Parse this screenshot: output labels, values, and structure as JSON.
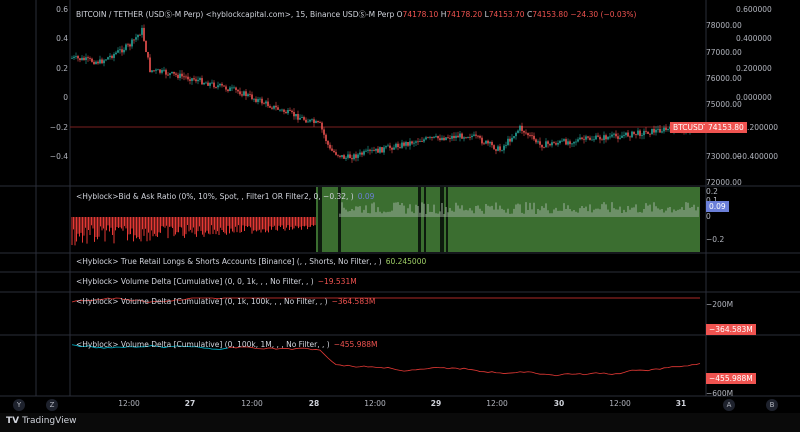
{
  "header": {
    "symbol_title": "BITCOIN / TETHER (USDⓈ-M Perp) <hyblockcapital.com>, 15, Binance USDⓈ-M Perp",
    "o_label": "O",
    "o_value": "74178.10",
    "h_label": "H",
    "h_value": "74178.20",
    "l_label": "L",
    "l_value": "74153.70",
    "c_label": "C",
    "c_value": "74153.80",
    "change": "−24.30 (−0.03%)"
  },
  "price_tag": {
    "symbol": "BTCUSDT",
    "value": "74153.80"
  },
  "left_axis": [
    "0.6",
    "0.4",
    "0.2",
    "0",
    "−0.2",
    "−0.4"
  ],
  "price_axis": [
    "78000.00",
    "77000.00",
    "76000.00",
    "75000.00",
    "73000.00",
    "72000.00"
  ],
  "right_axis": [
    "0.600000",
    "0.400000",
    "0.200000",
    "0.000000",
    "−0.200000",
    "−0.400000"
  ],
  "indicators": {
    "bid_ask": {
      "title": "<Hyblock>Bid & Ask Ratio (0%, 10%, Spot, , Filter1 OR Filter2, 0, −0.32, )",
      "value": "0.09",
      "axis": [
        "0.2",
        "0.1",
        "0.09",
        "0",
        "−0.2"
      ]
    },
    "retail": {
      "title": "<Hyblock> True Retail Longs & Shorts Accounts [Binance] (, , Shorts, No Filter, , )",
      "value": "60.245000"
    },
    "vd1": {
      "title": "<Hyblock> Volume Delta [Cumulative] (0, 0, 1k, , , No Filter, , )",
      "value": "−19.531M"
    },
    "vd2": {
      "title": "<Hyblock> Volume Delta [Cumulative] (0, 1k, 100k, , , No Filter, , )",
      "value": "−364.583M",
      "axis": [
        "−200M",
        "−364.583M"
      ]
    },
    "vd3": {
      "title": "<Hyblock> Volume Delta [Cumulative] (0, 100k, 1M, , , No Filter, , )",
      "value": "−455.988M",
      "axis": [
        "−455.988M",
        "−600M"
      ]
    }
  },
  "time_axis": {
    "labels": [
      "12:00",
      "27",
      "12:00",
      "28",
      "12:00",
      "29",
      "12:00",
      "30",
      "12:00",
      "31"
    ],
    "left_buttons": [
      "Y",
      "Z"
    ],
    "right_buttons": [
      "A",
      "B"
    ]
  },
  "brand": "TradingView",
  "colors": {
    "up": "#26a69a",
    "down": "#ef5350",
    "green_fill": "#3b6e30",
    "red": "#e53935",
    "teal": "#00bcd4"
  }
}
